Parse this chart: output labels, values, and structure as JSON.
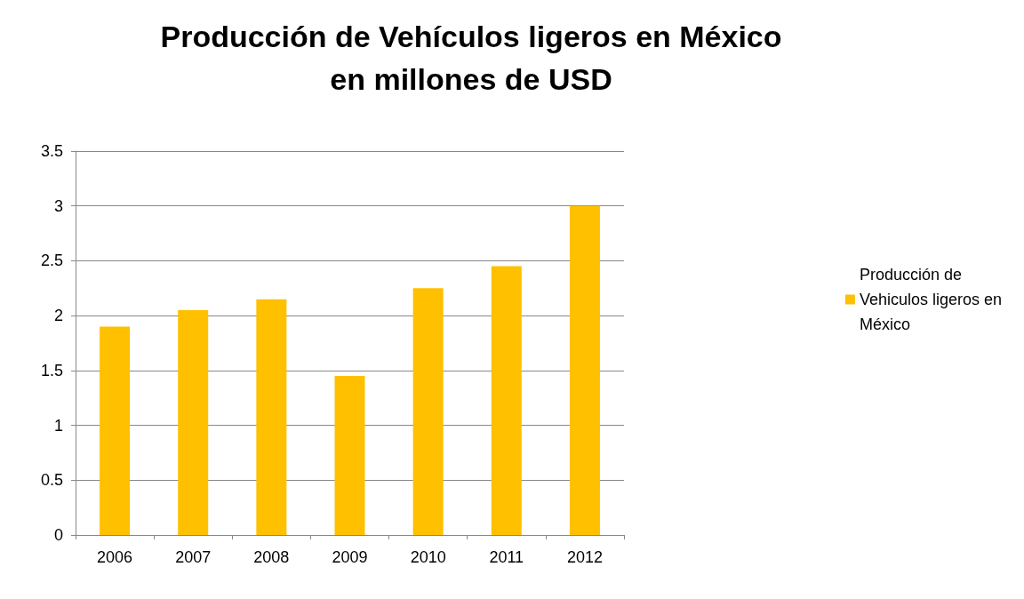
{
  "chart_data": {
    "type": "bar",
    "title": "Producción de Vehículos ligeros en México\nen millones de USD",
    "categories": [
      "2006",
      "2007",
      "2008",
      "2009",
      "2010",
      "2011",
      "2012"
    ],
    "series": [
      {
        "name": "Producción de Vehiculos ligeros en México",
        "color": "#ffc000",
        "values": [
          1.9,
          2.05,
          2.15,
          1.45,
          2.25,
          2.45,
          3.0
        ]
      }
    ],
    "ylim": [
      0,
      3.5
    ],
    "yticks": [
      0,
      0.5,
      1,
      1.5,
      2,
      2.5,
      3,
      3.5
    ],
    "grid": "y",
    "legend": "right"
  }
}
